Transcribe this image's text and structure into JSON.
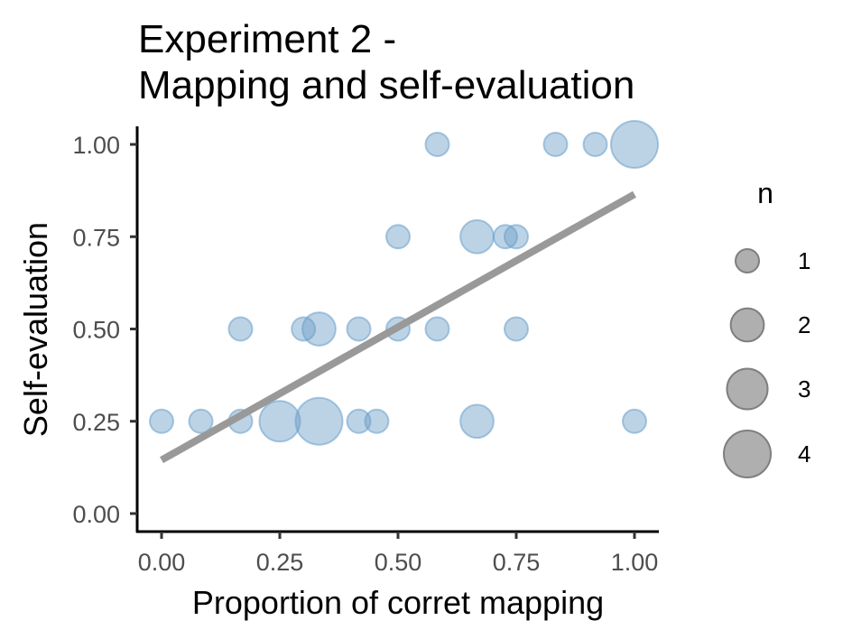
{
  "chart_data": {
    "type": "scatter",
    "title_line1": "Experiment 2 -",
    "title_line2": "Mapping and self-evaluation",
    "xlabel": "Proportion of corret mapping",
    "ylabel": "Self-evaluation",
    "xlim": [
      0,
      1
    ],
    "ylim": [
      0,
      1
    ],
    "x_ticks": [
      "0.00",
      "0.25",
      "0.50",
      "0.75",
      "1.00"
    ],
    "y_ticks": [
      "0.00",
      "0.25",
      "0.50",
      "0.75",
      "1.00"
    ],
    "grid": false,
    "point_color": "#6a9ec8",
    "trend_color": "#999999",
    "trend_line": {
      "x": [
        0,
        1
      ],
      "y": [
        0.145,
        0.865
      ]
    },
    "points": [
      {
        "x": 0.0,
        "y": 0.25,
        "n": 1
      },
      {
        "x": 0.083,
        "y": 0.25,
        "n": 1
      },
      {
        "x": 0.167,
        "y": 0.25,
        "n": 1
      },
      {
        "x": 0.25,
        "y": 0.25,
        "n": 3
      },
      {
        "x": 0.333,
        "y": 0.25,
        "n": 4
      },
      {
        "x": 0.417,
        "y": 0.25,
        "n": 1
      },
      {
        "x": 0.455,
        "y": 0.25,
        "n": 1
      },
      {
        "x": 0.667,
        "y": 0.25,
        "n": 2
      },
      {
        "x": 1.0,
        "y": 0.25,
        "n": 1
      },
      {
        "x": 0.167,
        "y": 0.5,
        "n": 1
      },
      {
        "x": 0.3,
        "y": 0.5,
        "n": 1
      },
      {
        "x": 0.333,
        "y": 0.5,
        "n": 2
      },
      {
        "x": 0.417,
        "y": 0.5,
        "n": 1
      },
      {
        "x": 0.5,
        "y": 0.5,
        "n": 1
      },
      {
        "x": 0.583,
        "y": 0.5,
        "n": 1
      },
      {
        "x": 0.75,
        "y": 0.5,
        "n": 1
      },
      {
        "x": 0.5,
        "y": 0.75,
        "n": 1
      },
      {
        "x": 0.667,
        "y": 0.75,
        "n": 2
      },
      {
        "x": 0.727,
        "y": 0.75,
        "n": 1
      },
      {
        "x": 0.75,
        "y": 0.75,
        "n": 1
      },
      {
        "x": 0.583,
        "y": 1.0,
        "n": 1
      },
      {
        "x": 0.833,
        "y": 1.0,
        "n": 1
      },
      {
        "x": 0.917,
        "y": 1.0,
        "n": 1
      },
      {
        "x": 1.0,
        "y": 1.0,
        "n": 4
      }
    ],
    "legend": {
      "title": "n",
      "placement": "right",
      "items": [
        {
          "label": "1",
          "n": 1
        },
        {
          "label": "2",
          "n": 2
        },
        {
          "label": "3",
          "n": 3
        },
        {
          "label": "4",
          "n": 4
        }
      ]
    }
  }
}
